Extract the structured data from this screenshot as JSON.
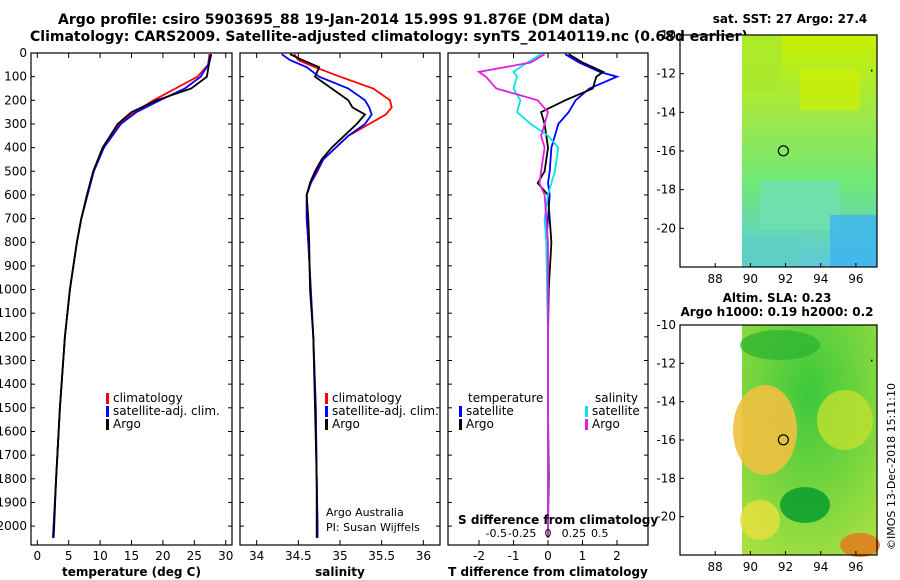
{
  "header": {
    "line1": "Argo profile: csiro 5903695_88 19-Jan-2014 15.99S 91.876E (DM data)",
    "line2": "Climatology: CARS2009. Satellite-adjusted climatology: synTS_20140119.nc (0.68d earlier)"
  },
  "colors": {
    "climatology": "#ff0000",
    "satellite": "#0000ff",
    "argo": "#000000",
    "sal_satellite": "#00e5e5",
    "sal_argo": "#e020e0"
  },
  "chart_data": [
    {
      "type": "line",
      "panel": "temperature",
      "xlabel": "temperature (deg C)",
      "ylabel": "",
      "xlim": [
        -1,
        31
      ],
      "ylim": [
        2080,
        0
      ],
      "xticks": [
        0,
        5,
        10,
        15,
        20,
        25,
        30
      ],
      "yticks": [
        0,
        100,
        200,
        300,
        400,
        500,
        600,
        700,
        800,
        900,
        1000,
        1100,
        1200,
        1300,
        1400,
        1500,
        1600,
        1700,
        1800,
        1900,
        2000
      ],
      "y": [
        5,
        50,
        100,
        150,
        200,
        250,
        300,
        400,
        500,
        600,
        700,
        800,
        1000,
        1200,
        1500,
        1800,
        2000,
        2050
      ],
      "series": [
        {
          "name": "climatology",
          "values": [
            27.4,
            27.2,
            25.5,
            22.0,
            18.5,
            15.5,
            13.0,
            10.5,
            9.0,
            8.0,
            7.0,
            6.3,
            5.2,
            4.4,
            3.6,
            3.0,
            2.6,
            2.5
          ]
        },
        {
          "name": "satellite-adj. clim.",
          "values": [
            27.6,
            27.2,
            26.0,
            23.5,
            19.5,
            15.8,
            13.3,
            10.6,
            9.0,
            8.0,
            7.0,
            6.3,
            5.2,
            4.4,
            3.6,
            3.0,
            2.6,
            2.5
          ]
        },
        {
          "name": "Argo",
          "values": [
            27.7,
            27.3,
            27.0,
            24.5,
            19.0,
            15.0,
            12.8,
            10.4,
            8.9,
            7.9,
            7.0,
            6.3,
            5.2,
            4.4,
            3.6,
            3.0,
            2.7,
            2.6
          ]
        }
      ]
    },
    {
      "type": "line",
      "panel": "salinity",
      "xlabel": "salinity",
      "xlim": [
        33.8,
        36.2
      ],
      "ylim": [
        2080,
        0
      ],
      "xticks": [
        34,
        34.5,
        35,
        35.5,
        36
      ],
      "y": [
        5,
        30,
        60,
        100,
        150,
        200,
        230,
        260,
        300,
        350,
        400,
        450,
        500,
        550,
        600,
        700,
        800,
        1000,
        1200,
        1500,
        1800,
        2000,
        2050
      ],
      "series": [
        {
          "name": "climatology",
          "values": [
            34.45,
            34.5,
            34.7,
            35.0,
            35.4,
            35.6,
            35.62,
            35.55,
            35.35,
            35.1,
            34.95,
            34.8,
            34.73,
            34.65,
            34.6,
            34.6,
            34.62,
            34.65,
            34.68,
            34.71,
            34.72,
            34.73,
            34.73
          ]
        },
        {
          "name": "satellite-adj. clim.",
          "values": [
            34.3,
            34.4,
            34.6,
            34.75,
            35.1,
            35.3,
            35.35,
            35.38,
            35.3,
            35.1,
            34.95,
            34.8,
            34.72,
            34.65,
            34.6,
            34.6,
            34.62,
            34.65,
            34.68,
            34.71,
            34.72,
            34.73,
            34.73
          ]
        },
        {
          "name": "Argo",
          "values": [
            34.4,
            34.55,
            34.75,
            34.7,
            34.9,
            35.1,
            35.15,
            35.3,
            35.2,
            35.05,
            34.9,
            34.78,
            34.7,
            34.64,
            34.6,
            34.62,
            34.63,
            34.64,
            34.68,
            34.7,
            34.72,
            34.72,
            34.72
          ]
        }
      ]
    },
    {
      "type": "line",
      "panel": "difference",
      "xlabel": "T difference from climatology",
      "xlabel_top": "S difference from climatology",
      "xlim": [
        -2.9,
        2.9
      ],
      "ylim": [
        2080,
        0
      ],
      "xticks": [
        -2,
        -1,
        0,
        1,
        2
      ],
      "xticks_s": [
        "-0.5",
        "-0.25",
        "0",
        "0.25",
        "0.5"
      ],
      "y": [
        5,
        40,
        80,
        100,
        150,
        200,
        250,
        300,
        350,
        400,
        500,
        550,
        600,
        700,
        800,
        1000,
        1200,
        1500,
        1800,
        2000,
        2050
      ],
      "series": [
        {
          "name": "temperature satellite",
          "values": [
            0.5,
            0.9,
            1.5,
            2.0,
            1.2,
            0.8,
            0.6,
            0.3,
            0.2,
            0.1,
            0.05,
            0.0,
            0.05,
            0.0,
            -0.05,
            0.0,
            0.0,
            0.0,
            0.0,
            0.0,
            0.0
          ]
        },
        {
          "name": "temperature Argo",
          "values": [
            0.6,
            1.0,
            1.6,
            1.4,
            1.3,
            0.5,
            -0.2,
            -0.1,
            -0.05,
            0.0,
            -0.1,
            -0.3,
            0.0,
            0.05,
            0.1,
            0.02,
            0.0,
            0.0,
            0.02,
            0.0,
            0.0
          ]
        },
        {
          "name": "salinity satellite",
          "values": [
            -0.2,
            -0.6,
            -1.0,
            -0.9,
            -1.0,
            -0.8,
            -0.9,
            -0.5,
            0.0,
            0.3,
            0.2,
            0.1,
            0.0,
            -0.1,
            -0.05,
            -0.03,
            0.0,
            0.0,
            0.0,
            0.0,
            0.0
          ]
        },
        {
          "name": "salinity Argo",
          "values": [
            -0.1,
            -0.5,
            -2.0,
            -1.8,
            -1.5,
            -0.3,
            0.0,
            -0.1,
            -0.2,
            -0.1,
            -0.2,
            -0.25,
            -0.1,
            -0.05,
            0.0,
            0.0,
            0.0,
            0.0,
            0.0,
            0.0,
            0.0
          ]
        }
      ]
    },
    {
      "type": "heatmap",
      "panel": "sst-map",
      "title": "sat. SST: 27 Argo: 27.4",
      "xlim": [
        86,
        97.2
      ],
      "ylim": [
        -22,
        -10
      ],
      "xticks": [
        88,
        90,
        92,
        94,
        96
      ],
      "yticks": [
        -10,
        -12,
        -14,
        -16,
        -18,
        -20
      ],
      "marker": {
        "lon": 91.876,
        "lat": -15.99
      }
    },
    {
      "type": "heatmap",
      "panel": "sla-map",
      "title": "Altim. SLA: 0.23",
      "subtitle": "Argo h1000: 0.19 h2000: 0.2",
      "xlim": [
        86,
        97.2
      ],
      "ylim": [
        -22,
        -10
      ],
      "xticks": [
        88,
        90,
        92,
        94,
        96
      ],
      "yticks": [
        -10,
        -12,
        -14,
        -16,
        -18,
        -20
      ],
      "marker": {
        "lon": 91.876,
        "lat": -15.99
      }
    }
  ],
  "legends": {
    "temp_items": [
      "climatology",
      "satellite-adj. clim.",
      "Argo"
    ],
    "sal_items": [
      "climatology",
      "satellite-adj. clim.",
      "Argo"
    ],
    "diff_left_head": "temperature",
    "diff_right_head": "salinity",
    "diff_left_items": [
      "satellite",
      "Argo"
    ],
    "diff_right_items": [
      "satellite",
      "Argo"
    ]
  },
  "credits": {
    "line1": "Argo Australia",
    "line2": "PI: Susan Wijffels",
    "vertical": "©IMOS 13-Dec-2018 15:11:10"
  }
}
